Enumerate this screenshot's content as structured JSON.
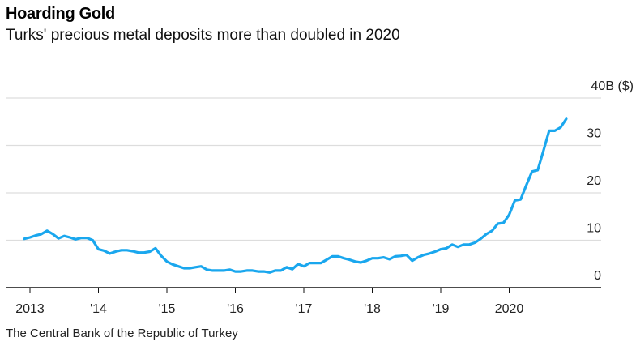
{
  "header": {
    "title": "Hoarding Gold",
    "subtitle": "Turks' precious metal deposits more than doubled in 2020"
  },
  "footer": {
    "source": "The Central Bank of the Republic of Turkey"
  },
  "colors": {
    "line": "#1aa7ee",
    "grid": "#dddddd",
    "axis": "#111111"
  },
  "chart_data": {
    "type": "line",
    "title": "Hoarding Gold",
    "subtitle": "Turks' precious metal deposits more than doubled in 2020",
    "xlabel": "",
    "ylabel": "B ($)",
    "y_unit_label": "40B ($)",
    "ylim": [
      0,
      40
    ],
    "yticks": [
      0,
      10,
      20,
      30,
      40
    ],
    "ytick_labels": [
      "0",
      "10",
      "20",
      "30",
      "40B ($)"
    ],
    "xticks": [
      "2013",
      "'14",
      "'15",
      "'16",
      "'17",
      "'18",
      "'19",
      "2020"
    ],
    "grid": true,
    "y_axis_side": "right",
    "x_start": "2012-12",
    "x_frequency": "monthly",
    "series": [
      {
        "name": "Precious metal deposits",
        "values": [
          10.3,
          10.6,
          11.0,
          11.3,
          12.0,
          11.3,
          10.4,
          10.9,
          10.6,
          10.2,
          10.5,
          10.5,
          10.0,
          8.1,
          7.8,
          7.2,
          7.6,
          7.9,
          7.9,
          7.7,
          7.4,
          7.4,
          7.6,
          8.3,
          6.7,
          5.5,
          4.9,
          4.5,
          4.1,
          4.1,
          4.3,
          4.5,
          3.8,
          3.6,
          3.6,
          3.6,
          3.8,
          3.4,
          3.4,
          3.6,
          3.6,
          3.4,
          3.4,
          3.2,
          3.6,
          3.6,
          4.3,
          3.9,
          5.0,
          4.5,
          5.2,
          5.2,
          5.2,
          5.9,
          6.6,
          6.6,
          6.2,
          5.9,
          5.5,
          5.3,
          5.7,
          6.2,
          6.2,
          6.4,
          6.0,
          6.6,
          6.7,
          6.9,
          5.7,
          6.4,
          6.9,
          7.2,
          7.6,
          8.1,
          8.3,
          9.1,
          8.6,
          9.1,
          9.1,
          9.5,
          10.3,
          11.3,
          12.0,
          13.5,
          13.7,
          15.4,
          18.4,
          18.6,
          21.6,
          24.5,
          24.8,
          28.9,
          33.1,
          33.1,
          33.8,
          35.6
        ]
      }
    ]
  }
}
